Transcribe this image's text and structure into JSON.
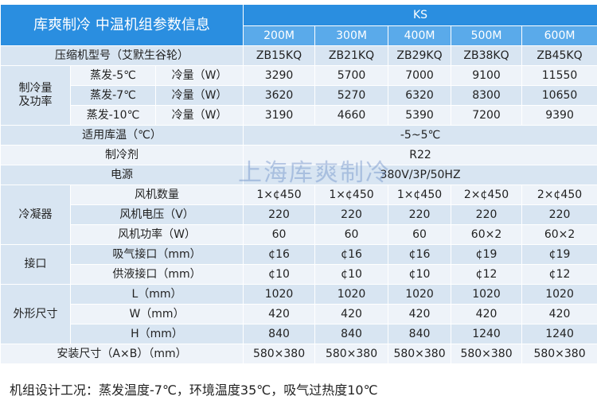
{
  "table": {
    "title": "库爽制冷  中温机组参数信息",
    "series": "KS",
    "models": [
      "200M",
      "300M",
      "400M",
      "500M",
      "600M"
    ]
  },
  "compressor": {
    "label": "压缩机型号（艾默生谷轮）",
    "values": [
      "ZB15KQ",
      "ZB21KQ",
      "ZB29KQ",
      "ZB38KQ",
      "ZB45KQ"
    ]
  },
  "cooling": {
    "group": "制冷量\n及功率",
    "rows": [
      {
        "label": "蒸发-5℃",
        "unit": "冷量（W）",
        "values": [
          3290,
          5700,
          7000,
          9100,
          11550
        ]
      },
      {
        "label": "蒸发-7℃",
        "unit": "冷量（W）",
        "values": [
          3620,
          5270,
          6320,
          8300,
          10650
        ]
      },
      {
        "label": "蒸发-10℃",
        "unit": "冷量（W）",
        "values": [
          3190,
          4660,
          5390,
          7200,
          9390
        ]
      }
    ]
  },
  "shared": [
    {
      "label": "适用库温（℃）",
      "value": "-5~5℃"
    },
    {
      "label": "制冷剂",
      "value": "R22"
    },
    {
      "label": "电源",
      "value": "380V/3P/50HZ"
    }
  ],
  "condenser": {
    "group": "冷凝器",
    "rows": [
      {
        "label": "风机数量",
        "values": [
          "1×¢450",
          "1×¢450",
          "1×¢450",
          "2×¢450",
          "2×¢450"
        ]
      },
      {
        "label": "风机电压（V）",
        "values": [
          220,
          220,
          220,
          220,
          220
        ]
      },
      {
        "label": "风机功率（W）",
        "values": [
          "60",
          "60",
          "60",
          "60×2",
          "60×2"
        ]
      }
    ]
  },
  "ports": {
    "group": "接口",
    "rows": [
      {
        "label": "吸气接口（mm）",
        "values": [
          "¢16",
          "¢16",
          "¢16",
          "¢19",
          "¢19"
        ]
      },
      {
        "label": "供液接口（mm）",
        "values": [
          "¢10",
          "¢10",
          "¢10",
          "¢12",
          "¢12"
        ]
      }
    ]
  },
  "dimensions": {
    "group": "外形尺寸",
    "rows": [
      {
        "label": "L（mm）",
        "values": [
          1020,
          1020,
          1020,
          1020,
          1020
        ]
      },
      {
        "label": "W（mm）",
        "values": [
          420,
          420,
          420,
          420,
          420
        ]
      },
      {
        "label": "H（mm）",
        "values": [
          840,
          840,
          840,
          1240,
          1240
        ]
      }
    ]
  },
  "install": {
    "label": "安装尺寸（A×B）（mm）",
    "values": [
      "580×380",
      "580×380",
      "580×380",
      "580×380",
      "580×380"
    ]
  },
  "watermark": "上海库爽制冷",
  "footnote": "机组设计工况：蒸发温度-7℃，环境温度35℃，吸气过热度10℃"
}
